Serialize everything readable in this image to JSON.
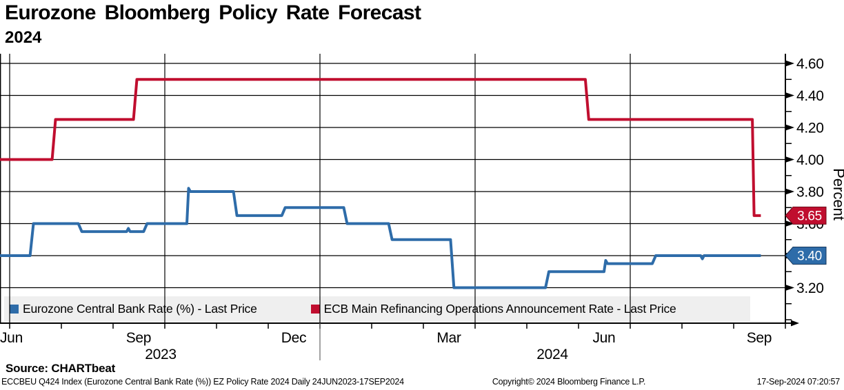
{
  "header": {
    "title": "Eurozone Bloomberg Policy Rate Forecast",
    "subtitle": "2024"
  },
  "chart_data": {
    "type": "line",
    "title": "Eurozone Bloomberg Policy Rate Forecast 2024",
    "ylabel": "Percent",
    "ylim": [
      3.0,
      4.66
    ],
    "grid": true,
    "y_ticks": [
      3.2,
      3.4,
      3.6,
      3.8,
      4.0,
      4.2,
      4.4,
      4.6
    ],
    "y_tick_labels": [
      "3.20",
      "3.40",
      "3.60",
      "3.80",
      "4.00",
      "4.20",
      "4.40",
      "4.60"
    ],
    "y_minor_ticks": [
      3.0,
      3.1,
      3.3,
      3.5,
      3.7,
      3.9,
      4.1,
      4.3,
      4.5
    ],
    "x_range": [
      "2023-06-24",
      "2024-09-17"
    ],
    "x_gridline_dates": [
      "2023-07-01",
      "2023-10-01",
      "2024-01-01",
      "2024-04-01",
      "2024-07-01"
    ],
    "x_month_ticks": [
      "2023-07-01",
      "2023-08-01",
      "2023-09-01",
      "2023-10-01",
      "2023-11-01",
      "2023-12-01",
      "2024-01-01",
      "2024-02-01",
      "2024-03-01",
      "2024-04-01",
      "2024-05-01",
      "2024-06-01",
      "2024-07-01",
      "2024-08-01",
      "2024-09-01",
      "2024-10-01"
    ],
    "x_labels": [
      {
        "label": "Jun",
        "date": "2023-07-02"
      },
      {
        "label": "Sep",
        "date": "2023-09-16"
      },
      {
        "label": "Dec",
        "date": "2023-12-16"
      },
      {
        "label": "Mar",
        "date": "2024-03-16"
      },
      {
        "label": "Jun",
        "date": "2024-06-16"
      },
      {
        "label": "Sep",
        "date": "2024-09-16"
      }
    ],
    "year_labels": [
      {
        "label": "2023",
        "date": "2023-09-29"
      },
      {
        "label": "2024",
        "date": "2024-05-16"
      }
    ],
    "year_divider_date": "2024-01-01",
    "series": [
      {
        "name": "Eurozone Central Bank Rate (%) - Last Price",
        "color": "#2e6ca9",
        "badge_border": "#14365c",
        "last_price": "3.40",
        "points": [
          [
            "2023-06-24",
            3.4
          ],
          [
            "2023-07-13",
            3.4
          ],
          [
            "2023-07-15",
            3.6
          ],
          [
            "2023-08-11",
            3.6
          ],
          [
            "2023-08-13",
            3.55
          ],
          [
            "2023-09-09",
            3.55
          ],
          [
            "2023-09-10",
            3.57
          ],
          [
            "2023-09-11",
            3.55
          ],
          [
            "2023-09-19",
            3.55
          ],
          [
            "2023-09-21",
            3.6
          ],
          [
            "2023-10-14",
            3.6
          ],
          [
            "2023-10-15",
            3.82
          ],
          [
            "2023-10-16",
            3.8
          ],
          [
            "2023-11-11",
            3.8
          ],
          [
            "2023-11-13",
            3.65
          ],
          [
            "2023-12-09",
            3.65
          ],
          [
            "2023-12-11",
            3.7
          ],
          [
            "2024-01-15",
            3.7
          ],
          [
            "2024-01-17",
            3.6
          ],
          [
            "2024-02-11",
            3.6
          ],
          [
            "2024-02-13",
            3.5
          ],
          [
            "2024-03-17",
            3.5
          ],
          [
            "2024-03-19",
            3.2
          ],
          [
            "2024-05-12",
            3.2
          ],
          [
            "2024-05-14",
            3.3
          ],
          [
            "2024-06-16",
            3.3
          ],
          [
            "2024-06-17",
            3.37
          ],
          [
            "2024-06-18",
            3.35
          ],
          [
            "2024-07-14",
            3.35
          ],
          [
            "2024-07-16",
            3.4
          ],
          [
            "2024-08-12",
            3.4
          ],
          [
            "2024-08-13",
            3.38
          ],
          [
            "2024-08-14",
            3.4
          ],
          [
            "2024-09-17",
            3.4
          ]
        ]
      },
      {
        "name": "ECB Main Refinancing Operations Announcement Rate - Last Price",
        "color": "#c00e2f",
        "badge_border": "#6b0716",
        "last_price": "3.65",
        "points": [
          [
            "2023-06-24",
            4.0
          ],
          [
            "2023-07-26",
            4.0
          ],
          [
            "2023-07-28",
            4.25
          ],
          [
            "2023-09-13",
            4.25
          ],
          [
            "2023-09-15",
            4.5
          ],
          [
            "2024-06-05",
            4.5
          ],
          [
            "2024-06-07",
            4.25
          ],
          [
            "2024-09-12",
            4.25
          ],
          [
            "2024-09-13",
            3.65
          ],
          [
            "2024-09-17",
            3.65
          ]
        ]
      }
    ]
  },
  "legend": {
    "items": [
      {
        "label": "Eurozone Central Bank Rate (%) - Last Price",
        "color": "#2e6ca9"
      },
      {
        "label": "ECB Main Refinancing Operations Announcement Rate - Last Price",
        "color": "#c00e2f"
      }
    ]
  },
  "source": {
    "label": "Source: CHARTbeat"
  },
  "footer": {
    "left": "ECCBEU Q424 Index (Eurozone Central Bank Rate (%)) EZ Policy Rate 2024  Daily 24JUN2023-17SEP2024",
    "center": "Copyright© 2024 Bloomberg Finance L.P.",
    "right": "17-Sep-2024 07:20:57"
  }
}
